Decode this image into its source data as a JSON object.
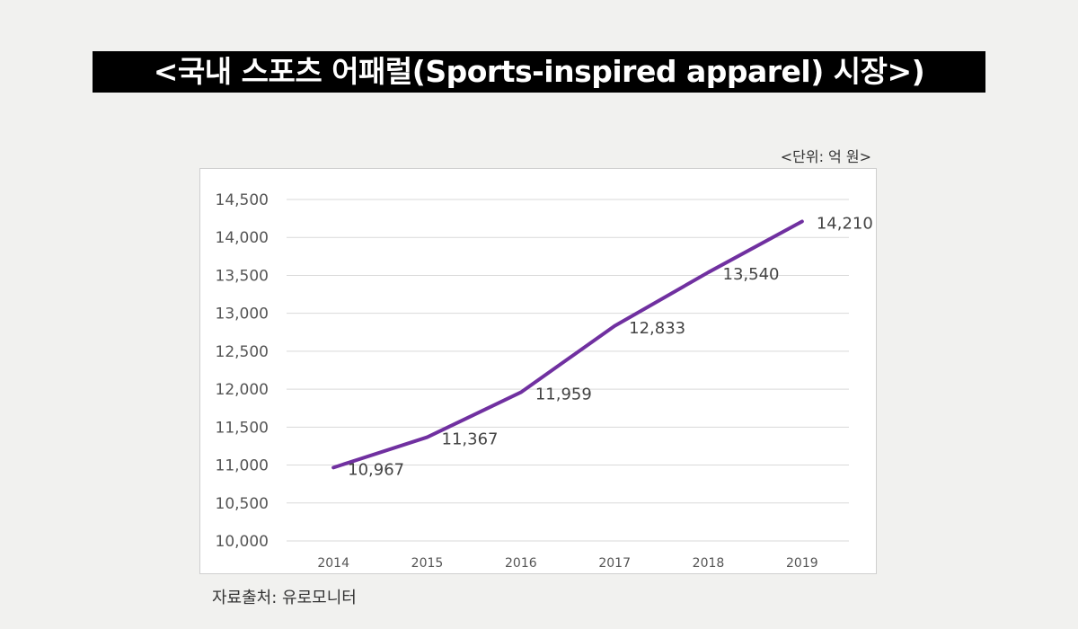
{
  "header": {
    "title": "<국내 스포츠 어패럴(Sports-inspired apparel) 시장>)",
    "unit": "<단위: 억 원>"
  },
  "footer": {
    "source": "자료출처: 유로모니터"
  },
  "colors": {
    "line": "#7030a0",
    "grid": "#d9d9d9",
    "title_bg": "#000000",
    "title_text": "#ffffff",
    "page_bg": "#f1f1ef"
  },
  "chart_data": {
    "type": "line",
    "categories": [
      "2014",
      "2015",
      "2016",
      "2017",
      "2018",
      "2019"
    ],
    "series": [
      {
        "values": [
          10967,
          11367,
          11959,
          12833,
          13540,
          14210
        ]
      }
    ],
    "data_labels": [
      "10,967",
      "11,367",
      "11,959",
      "12,833",
      "13,540",
      "14,210"
    ],
    "y_ticks": [
      "10,000",
      "10,500",
      "11,000",
      "11,500",
      "12,000",
      "12,500",
      "13,000",
      "13,500",
      "14,000",
      "14,500"
    ],
    "ylim": [
      10000,
      14500
    ],
    "grid": true,
    "legend": "none"
  }
}
